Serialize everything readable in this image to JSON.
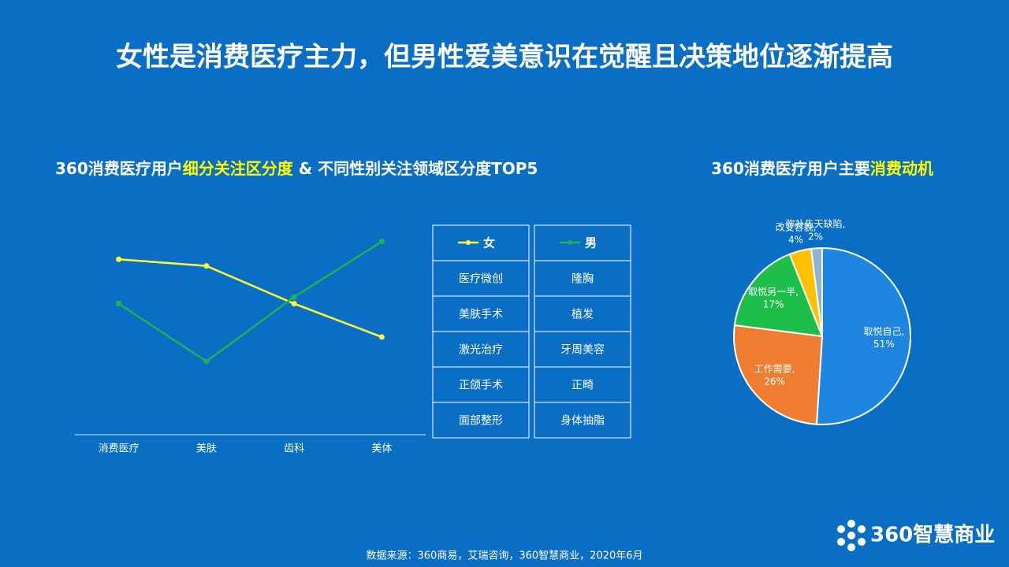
{
  "header": {
    "title": "女性是消费医疗主力，但男性爱美意识在觉醒且决策地位逐渐提高"
  },
  "chart_data": [
    {
      "type": "line",
      "subtitle": [
        {
          "text": "360消费医疗用户",
          "highlight": false
        },
        {
          "text": "细分关注区分度",
          "highlight": true
        },
        {
          "text": " & 不同性别关注领域区分度TOP5",
          "highlight": false
        }
      ],
      "categories": [
        "消费医疗",
        "美肤",
        "齿科",
        "美体"
      ],
      "ylim": [
        0,
        100
      ],
      "series": [
        {
          "name": "女",
          "color": "#ffff33",
          "values": [
            79,
            76,
            59,
            44
          ],
          "top5": [
            "医疗微创",
            "美肤手术",
            "激光治疗",
            "正颌手术",
            "面部整形"
          ]
        },
        {
          "name": "男",
          "color": "#1db34f",
          "values": [
            59,
            33,
            62,
            87
          ],
          "top5": [
            "隆胸",
            "植发",
            "牙周美容",
            "正畸",
            "身体抽脂"
          ]
        }
      ]
    },
    {
      "type": "pie",
      "subtitle": [
        {
          "text": "360消费医疗用户主要",
          "highlight": false
        },
        {
          "text": "消费动机",
          "highlight": true
        }
      ],
      "categories": [
        "取悦自己,",
        "工作需要,",
        "取悦另一半,",
        "改变容貌,",
        "弥补先天缺陷,"
      ],
      "values": [
        51,
        26,
        17,
        4,
        2
      ],
      "value_labels": [
        "51%",
        "26%",
        "17%",
        "4%",
        "2%"
      ],
      "colors": [
        "#1e86e0",
        "#ee7d31",
        "#1dbf4a",
        "#ffc000",
        "#8fb3d6"
      ]
    }
  ],
  "footer": {
    "source": "数据来源：360商易，艾瑞咨询，360智慧商业，2020年6月",
    "logo": "360智慧商业"
  }
}
